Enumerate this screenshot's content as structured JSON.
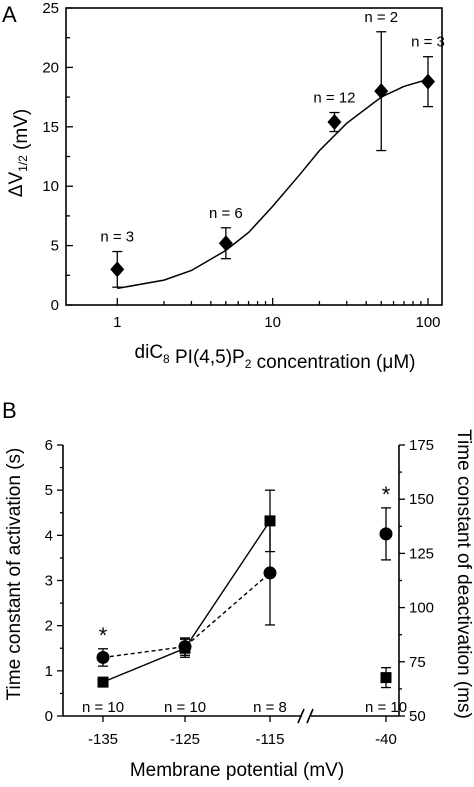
{
  "panel_a": {
    "letter": "A",
    "xlabel": "diC8 PI(4,5)P2 concentration (μM)",
    "ylabel": "ΔV1/2 (mV)"
  },
  "panel_b": {
    "letter": "B",
    "xlabel": "Membrane potential (mV)",
    "ylabel_left": "Time constant of activation (s)",
    "ylabel_right": "Time constant of deactivation (ms)"
  },
  "chart_data": [
    {
      "type": "scatter",
      "panel": "A",
      "xlabel": "diC8 PI(4,5)P2 concentration (μM)",
      "ylabel": "ΔV1/2 (mV)",
      "x_scale": "log",
      "xlim": [
        1,
        100
      ],
      "ylim": [
        0,
        25
      ],
      "x_ticks": [
        1,
        10,
        100
      ],
      "x_tick_labels": [
        "1",
        "10",
        "100"
      ],
      "y_ticks": [
        0,
        5,
        10,
        15,
        20,
        25
      ],
      "y_tick_labels": [
        "0",
        "5",
        "10",
        "15",
        "20",
        "25"
      ],
      "marker": "diamond",
      "series": [
        {
          "points": [
            {
              "x": 1,
              "y": 3.0,
              "err": 1.5,
              "n": "n = 3"
            },
            {
              "x": 5,
              "y": 5.2,
              "err": 1.3,
              "n": "n = 6"
            },
            {
              "x": 25,
              "y": 15.4,
              "err": 0.8,
              "n": "n = 12"
            },
            {
              "x": 50,
              "y": 18.0,
              "err": 5.0,
              "n": "n = 2"
            },
            {
              "x": 100,
              "y": 18.8,
              "err": 2.1,
              "n": "n = 3"
            }
          ]
        }
      ],
      "fit_curve": {
        "type": "line",
        "x": [
          1,
          2,
          3,
          5,
          7,
          10,
          15,
          20,
          30,
          50,
          70,
          100
        ],
        "y": [
          1.4,
          2.1,
          2.9,
          4.6,
          6.1,
          8.3,
          11.0,
          13.0,
          15.3,
          17.5,
          18.4,
          19.0
        ]
      }
    },
    {
      "type": "line",
      "panel": "B",
      "xlabel": "Membrane potential (mV)",
      "ylabel_left": "Time constant of activation (s)",
      "ylabel_right": "Time constant of deactivation (ms)",
      "categories": [
        "-135",
        "-125",
        "-115",
        "-40"
      ],
      "axis_break_between": [
        "-115",
        "-40"
      ],
      "ylim_left": [
        0,
        6
      ],
      "ylim_right": [
        50,
        175
      ],
      "y_ticks_left": [
        0,
        1,
        2,
        3,
        4,
        5,
        6
      ],
      "y_tick_labels_left": [
        "0",
        "1",
        "2",
        "3",
        "4",
        "5",
        "6"
      ],
      "y_ticks_right": [
        50,
        75,
        100,
        125,
        150,
        175
      ],
      "y_tick_labels_right": [
        "50",
        "75",
        "100",
        "125",
        "150",
        "175"
      ],
      "n_labels": [
        "n = 10",
        "n = 10",
        "n = 8",
        "n = 10"
      ],
      "significance": [
        {
          "category": "-135",
          "text": "*"
        },
        {
          "category": "-40",
          "text": "*"
        }
      ],
      "series": [
        {
          "marker": "square",
          "line_style": "solid",
          "axis": "left",
          "values": [
            0.75,
            1.5,
            4.32,
            0.85
          ],
          "errors": [
            0.05,
            0.2,
            0.68,
            0.22
          ],
          "connected": [
            true,
            true,
            true,
            false
          ]
        },
        {
          "marker": "circle",
          "line_style": "dashed",
          "axis": "right",
          "values": [
            77,
            82,
            116,
            134
          ],
          "errors": [
            4,
            4,
            24,
            12
          ],
          "connected": [
            true,
            true,
            true,
            false
          ]
        }
      ]
    }
  ]
}
